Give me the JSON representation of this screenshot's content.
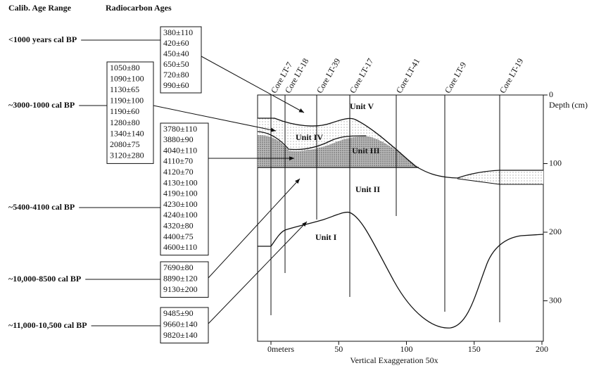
{
  "headers": {
    "range": "Calib. Age Range",
    "ages": "Radiocarbon Ages"
  },
  "groups": [
    {
      "range": "<1000 years cal BP",
      "ages": [
        "380±110",
        "420±60",
        "450±40",
        "650±50",
        "720±80",
        "990±60"
      ]
    },
    {
      "range": "~3000-1000 cal BP",
      "ages": [
        "1050±80",
        "1090±100",
        "1130±65",
        "1190±100",
        "1190±60",
        "1280±80",
        "1340±140",
        "2080±75",
        "3120±280"
      ]
    },
    {
      "range": "~5400-4100 cal BP",
      "ages": [
        "3780±110",
        "3880±90",
        "4040±110",
        "4110±70",
        "4120±70",
        "4130±100",
        "4190±100",
        "4230±100",
        "4240±100",
        "4320±80",
        "4400±75",
        "4600±110"
      ]
    },
    {
      "range": "~10,000-8500 cal BP",
      "ages": [
        "7690±80",
        "8890±120",
        "9130±200"
      ]
    },
    {
      "range": "~11,000-10,500 cal BP",
      "ages": [
        "9485±90",
        "9660±140",
        "9820±140"
      ]
    }
  ],
  "cores": [
    "Core LT-7",
    "Core LT-18",
    "Core LT-39",
    "Core LT-17",
    "Core LT-41",
    "Core LT-9",
    "Core LT-19"
  ],
  "units": [
    "Unit V",
    "Unit IV",
    "Unit III",
    "Unit II",
    "Unit I"
  ],
  "depth_axis": {
    "title": "Depth (cm)",
    "ticks": [
      "0",
      "100",
      "200",
      "300"
    ]
  },
  "distance_axis": {
    "ticks": [
      "0meters",
      "50",
      "100",
      "150",
      "200"
    ],
    "caption": "Vertical Exaggeration 50x"
  }
}
